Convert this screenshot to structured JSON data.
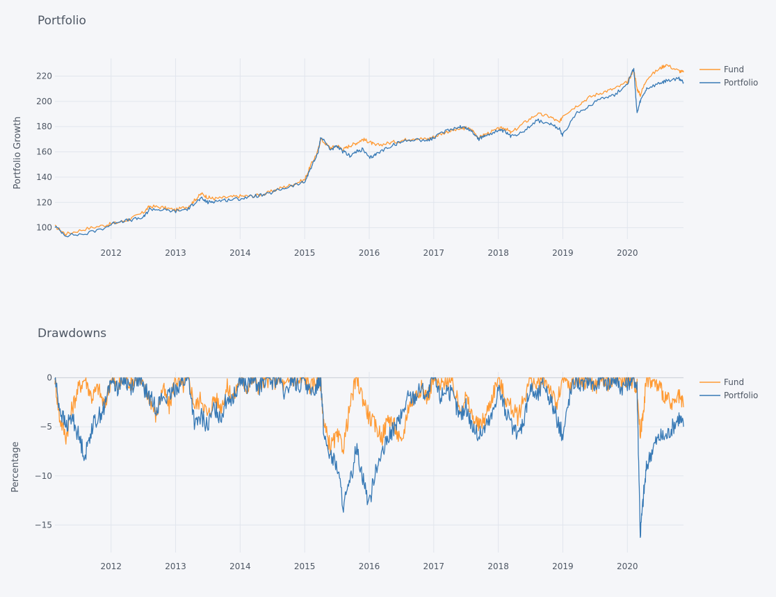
{
  "colors": {
    "fund": "#ff9a33",
    "portfolio": "#3779b5"
  },
  "chart_data": [
    {
      "type": "line",
      "title": "Portfolio",
      "xlabel": "",
      "ylabel": "Portfolio Growth",
      "x_tick_labels": [
        "2012",
        "2013",
        "2014",
        "2015",
        "2016",
        "2017",
        "2018",
        "2019",
        "2020"
      ],
      "x_range": [
        2011.13,
        2020.87
      ],
      "y_ticks": [
        100,
        120,
        140,
        160,
        180,
        200,
        220
      ],
      "ylim": [
        91,
        234
      ],
      "legend": [
        "Fund",
        "Portfolio"
      ],
      "series": [
        {
          "name": "Fund",
          "x": [
            2011.13,
            2011.3,
            2011.6,
            2011.9,
            2012.1,
            2012.3,
            2012.5,
            2012.6,
            2012.8,
            2013.0,
            2013.2,
            2013.3,
            2013.4,
            2013.5,
            2013.6,
            2013.8,
            2014.0,
            2014.2,
            2014.4,
            2014.6,
            2014.8,
            2015.0,
            2015.1,
            2015.2,
            2015.25,
            2015.4,
            2015.5,
            2015.6,
            2015.7,
            2015.8,
            2015.9,
            2016.0,
            2016.1,
            2016.3,
            2016.5,
            2016.7,
            2016.9,
            2017.0,
            2017.2,
            2017.4,
            2017.5,
            2017.6,
            2017.7,
            2017.8,
            2018.0,
            2018.1,
            2018.2,
            2018.4,
            2018.6,
            2018.8,
            2018.95,
            2019.0,
            2019.2,
            2019.4,
            2019.6,
            2019.8,
            2020.0,
            2020.1,
            2020.15,
            2020.2,
            2020.3,
            2020.5,
            2020.6,
            2020.8,
            2020.87
          ],
          "y": [
            101,
            95,
            99,
            102,
            104,
            107,
            112,
            117,
            116,
            114,
            117,
            122,
            127,
            124,
            123,
            124,
            125,
            125,
            127,
            131,
            134,
            138,
            150,
            160,
            170,
            163,
            165,
            162,
            165,
            167,
            170,
            168,
            165,
            167,
            169,
            171,
            170,
            172,
            176,
            178,
            179,
            177,
            171,
            174,
            178,
            179,
            175,
            183,
            190,
            188,
            183,
            189,
            196,
            203,
            207,
            210,
            215,
            225,
            210,
            205,
            218,
            226,
            229,
            224,
            223
          ]
        },
        {
          "name": "Portfolio",
          "x": [
            2011.13,
            2011.3,
            2011.6,
            2011.9,
            2012.1,
            2012.3,
            2012.5,
            2012.6,
            2012.8,
            2013.0,
            2013.2,
            2013.3,
            2013.4,
            2013.5,
            2013.6,
            2013.8,
            2014.0,
            2014.2,
            2014.4,
            2014.6,
            2014.8,
            2015.0,
            2015.1,
            2015.2,
            2015.25,
            2015.4,
            2015.5,
            2015.6,
            2015.7,
            2015.8,
            2015.9,
            2016.0,
            2016.1,
            2016.3,
            2016.5,
            2016.7,
            2016.9,
            2017.0,
            2017.2,
            2017.4,
            2017.5,
            2017.6,
            2017.7,
            2017.8,
            2018.0,
            2018.1,
            2018.2,
            2018.4,
            2018.6,
            2018.8,
            2018.95,
            2019.0,
            2019.2,
            2019.4,
            2019.6,
            2019.8,
            2020.0,
            2020.1,
            2020.15,
            2020.2,
            2020.3,
            2020.5,
            2020.6,
            2020.8,
            2020.87
          ],
          "y": [
            101,
            94,
            95,
            100,
            105,
            106,
            108,
            115,
            114,
            113,
            115,
            120,
            123,
            120,
            121,
            122,
            123,
            125,
            126,
            130,
            133,
            136,
            148,
            158,
            172,
            162,
            164,
            160,
            157,
            160,
            162,
            155,
            158,
            164,
            168,
            170,
            169,
            171,
            177,
            180,
            179,
            176,
            170,
            173,
            177,
            176,
            172,
            177,
            185,
            182,
            178,
            173,
            190,
            196,
            203,
            205,
            214,
            226,
            190,
            200,
            210,
            214,
            216,
            218,
            215
          ]
        }
      ]
    },
    {
      "type": "line",
      "title": "Drawdowns",
      "xlabel": "",
      "ylabel": "Percentage",
      "x_tick_labels": [
        "2012",
        "2013",
        "2014",
        "2015",
        "2016",
        "2017",
        "2018",
        "2019",
        "2020"
      ],
      "x_range": [
        2011.13,
        2020.87
      ],
      "y_ticks": [
        0,
        -5,
        -10,
        -15
      ],
      "ylim": [
        -17.8,
        0.6
      ],
      "legend": [
        "Fund",
        "Portfolio"
      ],
      "series": [
        {
          "name": "Fund",
          "x": [
            2011.13,
            2011.2,
            2011.3,
            2011.4,
            2011.5,
            2011.6,
            2011.7,
            2011.8,
            2011.9,
            2012.0,
            2012.1,
            2012.2,
            2012.3,
            2012.4,
            2012.5,
            2012.6,
            2012.7,
            2012.8,
            2012.9,
            2013.0,
            2013.1,
            2013.2,
            2013.3,
            2013.4,
            2013.5,
            2013.6,
            2013.7,
            2013.8,
            2013.9,
            2014.0,
            2014.1,
            2014.2,
            2014.3,
            2014.4,
            2014.5,
            2014.6,
            2014.7,
            2014.8,
            2014.9,
            2015.0,
            2015.1,
            2015.2,
            2015.25,
            2015.3,
            2015.4,
            2015.5,
            2015.6,
            2015.7,
            2015.8,
            2015.9,
            2016.0,
            2016.1,
            2016.2,
            2016.3,
            2016.4,
            2016.5,
            2016.6,
            2016.7,
            2016.8,
            2016.9,
            2017.0,
            2017.1,
            2017.2,
            2017.3,
            2017.4,
            2017.5,
            2017.6,
            2017.7,
            2017.8,
            2017.9,
            2018.0,
            2018.1,
            2018.2,
            2018.3,
            2018.4,
            2018.5,
            2018.6,
            2018.7,
            2018.8,
            2018.9,
            2019.0,
            2019.1,
            2019.2,
            2019.3,
            2019.4,
            2019.5,
            2019.6,
            2019.7,
            2019.8,
            2019.9,
            2020.0,
            2020.1,
            2020.15,
            2020.2,
            2020.25,
            2020.3,
            2020.4,
            2020.5,
            2020.6,
            2020.7,
            2020.8,
            2020.87
          ],
          "y": [
            0,
            -4,
            -6,
            -3,
            -1,
            0,
            -2,
            -1,
            -3,
            0,
            -1,
            0,
            -0.5,
            0,
            -1,
            -2,
            -4,
            -1,
            -3,
            0,
            -1,
            0,
            -3,
            -2,
            -4,
            -2,
            -3,
            -1,
            -2,
            0,
            -1,
            0,
            -1,
            0,
            -0.5,
            0,
            -1,
            0,
            -0.5,
            0,
            -1,
            0,
            -0.5,
            -5,
            -7,
            -6,
            -7,
            -3,
            0,
            -2,
            -4,
            -5,
            -6,
            -4,
            -5,
            -7,
            -3,
            -2,
            -1,
            -2,
            0,
            -1,
            0,
            -1,
            -3,
            -2,
            -4,
            -5,
            -4,
            -2,
            0,
            -2,
            -3,
            -4,
            -2,
            0,
            -1,
            0,
            -1,
            -3,
            0,
            -1,
            0,
            -0.5,
            0,
            -1,
            0,
            -0.5,
            0,
            -0.5,
            0,
            -0.5,
            -1,
            -6,
            -3,
            0,
            -0.5,
            -1,
            -2,
            -3,
            -2,
            -3
          ]
        },
        {
          "name": "Portfolio",
          "x": [
            2011.13,
            2011.2,
            2011.3,
            2011.4,
            2011.5,
            2011.6,
            2011.7,
            2011.8,
            2011.9,
            2012.0,
            2012.1,
            2012.2,
            2012.3,
            2012.4,
            2012.5,
            2012.6,
            2012.7,
            2012.8,
            2012.9,
            2013.0,
            2013.1,
            2013.2,
            2013.3,
            2013.4,
            2013.5,
            2013.6,
            2013.7,
            2013.8,
            2013.9,
            2014.0,
            2014.1,
            2014.2,
            2014.3,
            2014.4,
            2014.5,
            2014.6,
            2014.7,
            2014.8,
            2014.9,
            2015.0,
            2015.1,
            2015.2,
            2015.25,
            2015.3,
            2015.4,
            2015.5,
            2015.6,
            2015.7,
            2015.8,
            2015.9,
            2016.0,
            2016.1,
            2016.2,
            2016.3,
            2016.4,
            2016.5,
            2016.6,
            2016.7,
            2016.8,
            2016.9,
            2017.0,
            2017.1,
            2017.2,
            2017.3,
            2017.4,
            2017.5,
            2017.6,
            2017.7,
            2017.8,
            2017.9,
            2018.0,
            2018.1,
            2018.2,
            2018.3,
            2018.4,
            2018.5,
            2018.6,
            2018.7,
            2018.8,
            2018.9,
            2019.0,
            2019.1,
            2019.2,
            2019.3,
            2019.4,
            2019.5,
            2019.6,
            2019.7,
            2019.8,
            2019.9,
            2020.0,
            2020.1,
            2020.15,
            2020.2,
            2020.25,
            2020.3,
            2020.4,
            2020.5,
            2020.6,
            2020.7,
            2020.8,
            2020.87
          ],
          "y": [
            0,
            -3,
            -5,
            -4,
            -6,
            -8,
            -5,
            -4,
            -3,
            0,
            -1,
            0,
            -1,
            0,
            -1,
            -2,
            -3,
            -2,
            -2,
            -1,
            -0.5,
            0,
            -5,
            -4,
            -5,
            -3,
            -4,
            -2,
            -2,
            0,
            -1,
            0,
            -1,
            0,
            -0.5,
            0,
            -2,
            0,
            -1,
            0,
            -2,
            -0.5,
            0,
            -6,
            -8,
            -9,
            -13,
            -11,
            -7,
            -10,
            -13,
            -9,
            -8,
            -6,
            -5,
            -4,
            -2,
            -2,
            -1,
            -2,
            0,
            -2,
            -1,
            -2,
            -4,
            -3,
            -5,
            -6,
            -5,
            -4,
            -1,
            -3,
            -5,
            -6,
            -4,
            -1,
            -2,
            -0.5,
            -2,
            -4,
            -6,
            -2,
            0,
            -1,
            0,
            -1,
            0,
            -0.5,
            0,
            -1,
            -0.5,
            0,
            -1,
            -16,
            -12,
            -9,
            -7,
            -6,
            -6,
            -5,
            -4,
            -5
          ]
        }
      ]
    }
  ]
}
